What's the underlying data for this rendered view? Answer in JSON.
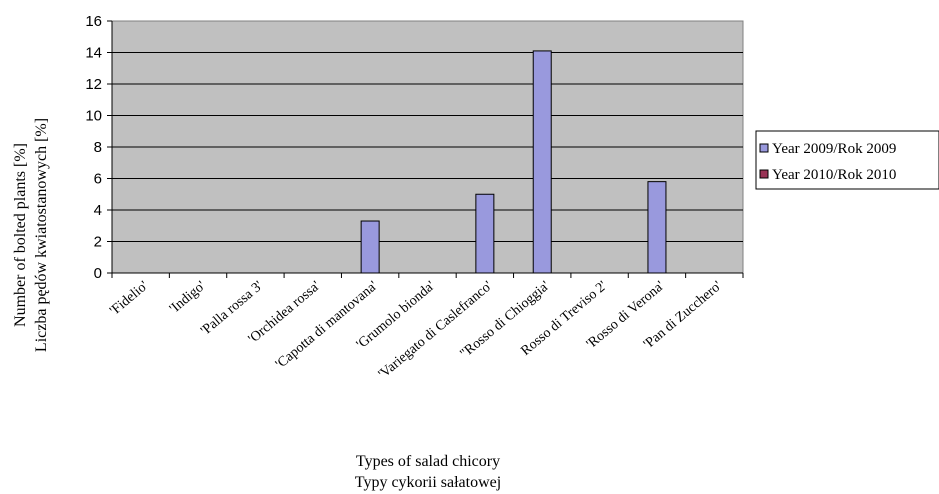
{
  "chart_data": {
    "type": "bar",
    "categories": [
      "'Fidelio'",
      "'Indigo'",
      "'Palla rossa 3'",
      "'Orchidea rossa'",
      "'Capotta di mantovana'",
      "'Grumolo bionda'",
      "'Variegato di Caslefranco'",
      "\"Rosso di Chioggia'",
      "Rosso di Treviso 2'",
      "'Rosso di Verona'",
      "'Pan di Zucchero'"
    ],
    "series": [
      {
        "name": "Year 2009/Rok 2009",
        "color": "#9999dd",
        "values": [
          0,
          0,
          0,
          0,
          3.3,
          0,
          5.0,
          14.1,
          0,
          5.8,
          0
        ]
      },
      {
        "name": "Year 2010/Rok 2010",
        "color": "#993355",
        "values": [
          0,
          0,
          0,
          0,
          0,
          0,
          0,
          0,
          0,
          0,
          0
        ]
      }
    ],
    "ylim": [
      0,
      16
    ],
    "yticks": [
      0,
      2,
      4,
      6,
      8,
      10,
      12,
      14,
      16
    ],
    "ylabel_line1": "Number of bolted plants [%]",
    "ylabel_line2": "Liczba pędów kwiatostanowych [%]",
    "xlabel_line1": "Types of salad chicory",
    "xlabel_line2": "Typy  cykorii sałatowej",
    "plot_background": "#c0c0c0",
    "grid": true,
    "legend_position": "right"
  }
}
